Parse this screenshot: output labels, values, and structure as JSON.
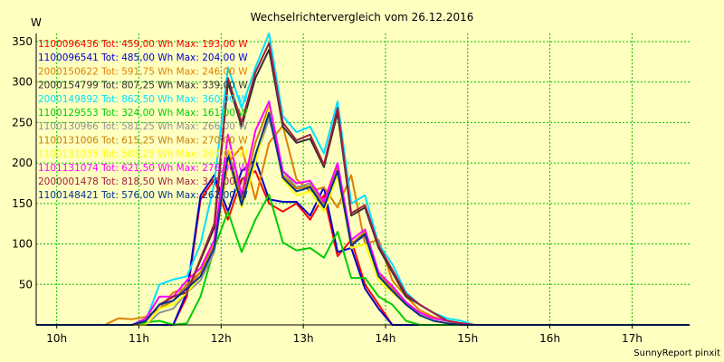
{
  "chart_data": {
    "type": "line",
    "title": "Wechselrichtervergleich vom 26.12.2016",
    "ylabel": "W",
    "xlabel": "",
    "credit": "SunnyReport pinxit",
    "xlim": [
      9.75,
      17.7
    ],
    "ylim": [
      0,
      360
    ],
    "grid": true,
    "legend_position": "top-left",
    "y_ticks": [
      50,
      100,
      150,
      200,
      250,
      300,
      350
    ],
    "x_ticks": [
      {
        "value": 10,
        "label": "10h"
      },
      {
        "value": 11,
        "label": "11h"
      },
      {
        "value": 12,
        "label": "12h"
      },
      {
        "value": 13,
        "label": "13h"
      },
      {
        "value": 14,
        "label": "14h"
      },
      {
        "value": 15,
        "label": "15h"
      },
      {
        "value": 16,
        "label": "16h"
      },
      {
        "value": 17,
        "label": "17h"
      }
    ],
    "x": [
      9.75,
      9.917,
      10.083,
      10.25,
      10.417,
      10.583,
      10.75,
      10.917,
      11.083,
      11.25,
      11.417,
      11.583,
      11.75,
      11.917,
      12.083,
      12.25,
      12.417,
      12.583,
      12.75,
      12.917,
      13.083,
      13.25,
      13.417,
      13.583,
      13.75,
      13.917,
      14.083,
      14.25,
      14.417,
      14.583,
      14.75,
      14.917,
      15.083,
      15.25,
      15.417,
      15.583,
      15.75,
      15.917,
      16.083,
      16.25,
      16.417,
      16.583,
      16.75,
      16.917,
      17.083,
      17.25,
      17.417,
      17.583,
      17.7
    ],
    "series": [
      {
        "name": "1100096436",
        "legend": "1100096436 Tot: 459,00 Wh Max: 193,00 W",
        "color": "#ff0000",
        "values": [
          0,
          0,
          0,
          0,
          0,
          0,
          0,
          0,
          0,
          0,
          0,
          35,
          155,
          180,
          130,
          180,
          190,
          150,
          140,
          150,
          130,
          160,
          85,
          105,
          50,
          25,
          0,
          0,
          0,
          0,
          0,
          0,
          0,
          0,
          0,
          0,
          0,
          0,
          0,
          0,
          0,
          0,
          0,
          0,
          0,
          0,
          0,
          0,
          0
        ]
      },
      {
        "name": "1100096541",
        "legend": "1100096541 Tot: 485,00 Wh Max: 204,00 W",
        "color": "#0000cc",
        "values": [
          0,
          0,
          0,
          0,
          0,
          0,
          0,
          0,
          0,
          0,
          0,
          40,
          160,
          185,
          140,
          190,
          204,
          155,
          152,
          152,
          135,
          170,
          90,
          95,
          45,
          20,
          0,
          0,
          0,
          0,
          0,
          0,
          0,
          0,
          0,
          0,
          0,
          0,
          0,
          0,
          0,
          0,
          0,
          0,
          0,
          0,
          0,
          0,
          0
        ]
      },
      {
        "name": "2000150622",
        "legend": "2000150622 Tot: 591,75 Wh Max: 246,00 W",
        "color": "#e08000",
        "values": [
          0,
          0,
          0,
          0,
          0,
          0,
          8,
          7,
          10,
          20,
          40,
          46,
          65,
          95,
          200,
          220,
          155,
          225,
          246,
          180,
          165,
          170,
          145,
          185,
          100,
          105,
          55,
          35,
          18,
          10,
          5,
          2,
          0,
          0,
          0,
          0,
          0,
          0,
          0,
          0,
          0,
          0,
          0,
          0,
          0,
          0,
          0,
          0,
          0
        ]
      },
      {
        "name": "2000154799",
        "legend": "2000154799 Tot: 807,25 Wh Max: 339,00 W",
        "color": "#303030",
        "values": [
          0,
          0,
          0,
          0,
          0,
          0,
          0,
          0,
          5,
          25,
          35,
          40,
          80,
          120,
          300,
          245,
          305,
          340,
          245,
          225,
          230,
          195,
          262,
          135,
          145,
          95,
          65,
          35,
          25,
          15,
          5,
          2,
          0,
          0,
          0,
          0,
          0,
          0,
          0,
          0,
          0,
          0,
          0,
          0,
          0,
          0,
          0,
          0,
          0
        ]
      },
      {
        "name": "2000149892",
        "legend": "2000149892 Tot: 862,50 Wh Max: 360,00 W",
        "color": "#00e0ff",
        "values": [
          0,
          0,
          0,
          0,
          0,
          0,
          0,
          0,
          5,
          50,
          56,
          60,
          100,
          175,
          318,
          268,
          318,
          360,
          258,
          238,
          245,
          212,
          276,
          150,
          160,
          100,
          75,
          40,
          25,
          15,
          8,
          5,
          0,
          0,
          0,
          0,
          0,
          0,
          0,
          0,
          0,
          0,
          0,
          0,
          0,
          0,
          0,
          0,
          0
        ]
      },
      {
        "name": "1100129553",
        "legend": "1100129553 Tot: 324,00 Wh Max: 161,00 W",
        "color": "#00cc00",
        "values": [
          0,
          0,
          0,
          0,
          0,
          0,
          0,
          0,
          3,
          5,
          0,
          2,
          35,
          95,
          140,
          90,
          130,
          161,
          102,
          92,
          95,
          83,
          115,
          58,
          58,
          35,
          25,
          5,
          0,
          0,
          0,
          0,
          0,
          0,
          0,
          0,
          0,
          0,
          0,
          0,
          0,
          0,
          0,
          0,
          0,
          0,
          0,
          0,
          0
        ]
      },
      {
        "name": "1100130966",
        "legend": "1100130966 Tot: 581,25 Wh Max: 266,00 W",
        "color": "#909090",
        "values": [
          0,
          0,
          0,
          0,
          0,
          0,
          0,
          0,
          0,
          15,
          20,
          40,
          55,
          90,
          210,
          150,
          205,
          255,
          190,
          170,
          175,
          150,
          190,
          100,
          110,
          60,
          45,
          25,
          15,
          8,
          5,
          2,
          0,
          0,
          0,
          0,
          0,
          0,
          0,
          0,
          0,
          0,
          0,
          0,
          0,
          0,
          0,
          0,
          0
        ]
      },
      {
        "name": "1100131006",
        "legend": "1100131006 Tot: 615,25 Wh Max: 270,00 W",
        "color": "#c88000",
        "values": [
          0,
          0,
          0,
          0,
          0,
          0,
          0,
          0,
          0,
          20,
          30,
          50,
          65,
          100,
          215,
          155,
          225,
          270,
          185,
          168,
          172,
          148,
          195,
          100,
          115,
          62,
          45,
          28,
          15,
          8,
          5,
          2,
          0,
          0,
          0,
          0,
          0,
          0,
          0,
          0,
          0,
          0,
          0,
          0,
          0,
          0,
          0,
          0,
          0
        ]
      },
      {
        "name": "1100131035",
        "legend": "1100131035 Tot: 583,25 Wh Max: 267,00 W",
        "color": "#ffff00",
        "values": [
          0,
          0,
          0,
          0,
          0,
          0,
          0,
          0,
          0,
          20,
          25,
          40,
          60,
          95,
          205,
          145,
          200,
          267,
          180,
          160,
          165,
          140,
          185,
          95,
          100,
          55,
          40,
          25,
          12,
          5,
          2,
          0,
          0,
          0,
          0,
          0,
          0,
          0,
          0,
          0,
          0,
          0,
          0,
          0,
          0,
          0,
          0,
          0,
          0
        ]
      },
      {
        "name": "1101131074",
        "legend": "1101131074 Tot: 621,50 Wh Max: 276,00 W",
        "color": "#ff00ff",
        "values": [
          0,
          0,
          0,
          0,
          0,
          0,
          0,
          0,
          8,
          35,
          35,
          55,
          70,
          105,
          235,
          160,
          240,
          276,
          190,
          175,
          178,
          152,
          200,
          105,
          118,
          65,
          48,
          28,
          15,
          8,
          5,
          2,
          0,
          0,
          0,
          0,
          0,
          0,
          0,
          0,
          0,
          0,
          0,
          0,
          0,
          0,
          0,
          0,
          0
        ]
      },
      {
        "name": "2000001478",
        "legend": "2000001478 Tot: 818,50 Wh Max: 348,00 W",
        "color": "#a02040",
        "values": [
          0,
          0,
          0,
          0,
          0,
          0,
          0,
          0,
          5,
          25,
          35,
          40,
          82,
          125,
          305,
          250,
          312,
          348,
          250,
          228,
          235,
          198,
          268,
          138,
          148,
          98,
          68,
          38,
          25,
          15,
          5,
          2,
          0,
          0,
          0,
          0,
          0,
          0,
          0,
          0,
          0,
          0,
          0,
          0,
          0,
          0,
          0,
          0,
          0
        ]
      },
      {
        "name": "1100148421",
        "legend": "1100148421 Tot: 576,00 Wh Max: 262,00 W",
        "color": "#003090",
        "values": [
          0,
          0,
          0,
          0,
          0,
          0,
          0,
          0,
          5,
          25,
          30,
          45,
          60,
          95,
          210,
          148,
          210,
          262,
          182,
          165,
          170,
          145,
          190,
          98,
          112,
          60,
          42,
          25,
          12,
          5,
          2,
          0,
          0,
          0,
          0,
          0,
          0,
          0,
          0,
          0,
          0,
          0,
          0,
          0,
          0,
          0,
          0,
          0,
          0
        ]
      }
    ]
  }
}
